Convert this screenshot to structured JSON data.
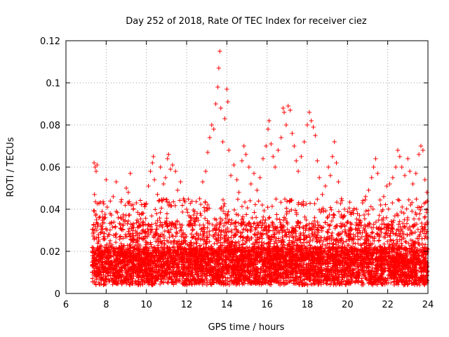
{
  "chart_data": {
    "type": "scatter",
    "title": "Day 252 of 2018, Rate Of TEC Index for receiver ciez",
    "xlabel": "GPS time / hours",
    "ylabel": "ROTI / TECUs",
    "xlim": [
      6,
      24
    ],
    "ylim": [
      0,
      0.12
    ],
    "xticks": [
      6,
      8,
      10,
      12,
      14,
      16,
      18,
      20,
      22,
      24
    ],
    "yticks": [
      0,
      0.02,
      0.04,
      0.06,
      0.08,
      0.1,
      0.12
    ],
    "xtick_labels": [
      "6",
      "8",
      "10",
      "12",
      "14",
      "16",
      "18",
      "20",
      "22",
      "24"
    ],
    "ytick_labels": [
      "0",
      "0.02",
      "0.04",
      "0.06",
      "0.08",
      "0.1",
      "0.12"
    ],
    "grid": true,
    "marker": "+",
    "color": "#ff0000",
    "series": [
      {
        "name": "ROTI",
        "points": [
          [
            7.4,
            0.062
          ],
          [
            7.45,
            0.06
          ],
          [
            7.5,
            0.058
          ],
          [
            7.55,
            0.061
          ],
          [
            7.42,
            0.047
          ],
          [
            7.48,
            0.037
          ],
          [
            7.52,
            0.035
          ],
          [
            7.6,
            0.033
          ],
          [
            8.0,
            0.054
          ],
          [
            8.05,
            0.041
          ],
          [
            8.2,
            0.038
          ],
          [
            8.35,
            0.046
          ],
          [
            8.5,
            0.053
          ],
          [
            8.6,
            0.036
          ],
          [
            8.7,
            0.031
          ],
          [
            8.85,
            0.035
          ],
          [
            9.0,
            0.05
          ],
          [
            9.1,
            0.048
          ],
          [
            9.2,
            0.057
          ],
          [
            9.35,
            0.04
          ],
          [
            9.5,
            0.043
          ],
          [
            9.6,
            0.034
          ],
          [
            9.8,
            0.038
          ],
          [
            9.95,
            0.029
          ],
          [
            10.1,
            0.051
          ],
          [
            10.2,
            0.058
          ],
          [
            10.3,
            0.062
          ],
          [
            10.35,
            0.065
          ],
          [
            10.4,
            0.054
          ],
          [
            10.55,
            0.047
          ],
          [
            10.7,
            0.06
          ],
          [
            10.85,
            0.052
          ],
          [
            10.95,
            0.055
          ],
          [
            11.05,
            0.064
          ],
          [
            11.1,
            0.066
          ],
          [
            11.2,
            0.059
          ],
          [
            11.3,
            0.061
          ],
          [
            11.45,
            0.058
          ],
          [
            11.55,
            0.049
          ],
          [
            11.7,
            0.053
          ],
          [
            11.85,
            0.045
          ],
          [
            12.0,
            0.04
          ],
          [
            12.15,
            0.033
          ],
          [
            12.3,
            0.03
          ],
          [
            12.5,
            0.036
          ],
          [
            12.65,
            0.045
          ],
          [
            12.8,
            0.053
          ],
          [
            12.95,
            0.058
          ],
          [
            13.05,
            0.067
          ],
          [
            13.15,
            0.074
          ],
          [
            13.25,
            0.08
          ],
          [
            13.35,
            0.078
          ],
          [
            13.45,
            0.09
          ],
          [
            13.55,
            0.098
          ],
          [
            13.6,
            0.107
          ],
          [
            13.65,
            0.115
          ],
          [
            13.7,
            0.088
          ],
          [
            13.8,
            0.072
          ],
          [
            13.9,
            0.083
          ],
          [
            14.0,
            0.097
          ],
          [
            14.05,
            0.091
          ],
          [
            14.1,
            0.068
          ],
          [
            14.2,
            0.056
          ],
          [
            14.35,
            0.061
          ],
          [
            14.5,
            0.054
          ],
          [
            14.6,
            0.048
          ],
          [
            14.75,
            0.063
          ],
          [
            14.85,
            0.07
          ],
          [
            14.95,
            0.066
          ],
          [
            15.1,
            0.06
          ],
          [
            15.2,
            0.052
          ],
          [
            15.35,
            0.057
          ],
          [
            15.5,
            0.049
          ],
          [
            15.65,
            0.055
          ],
          [
            15.8,
            0.064
          ],
          [
            15.95,
            0.07
          ],
          [
            16.05,
            0.078
          ],
          [
            16.1,
            0.082
          ],
          [
            16.2,
            0.071
          ],
          [
            16.3,
            0.065
          ],
          [
            16.4,
            0.06
          ],
          [
            16.55,
            0.068
          ],
          [
            16.7,
            0.074
          ],
          [
            16.8,
            0.088
          ],
          [
            16.85,
            0.086
          ],
          [
            16.95,
            0.08
          ],
          [
            17.05,
            0.089
          ],
          [
            17.15,
            0.087
          ],
          [
            17.25,
            0.076
          ],
          [
            17.35,
            0.07
          ],
          [
            17.45,
            0.063
          ],
          [
            17.55,
            0.058
          ],
          [
            17.7,
            0.065
          ],
          [
            17.85,
            0.072
          ],
          [
            18.0,
            0.08
          ],
          [
            18.1,
            0.086
          ],
          [
            18.2,
            0.082
          ],
          [
            18.3,
            0.079
          ],
          [
            18.4,
            0.075
          ],
          [
            18.5,
            0.063
          ],
          [
            18.6,
            0.055
          ],
          [
            18.75,
            0.047
          ],
          [
            18.9,
            0.051
          ],
          [
            19.05,
            0.06
          ],
          [
            19.15,
            0.056
          ],
          [
            19.25,
            0.065
          ],
          [
            19.35,
            0.072
          ],
          [
            19.45,
            0.062
          ],
          [
            19.55,
            0.053
          ],
          [
            19.7,
            0.045
          ],
          [
            19.85,
            0.04
          ],
          [
            20.0,
            0.034
          ],
          [
            20.15,
            0.031
          ],
          [
            20.3,
            0.038
          ],
          [
            20.45,
            0.04
          ],
          [
            20.6,
            0.037
          ],
          [
            20.75,
            0.043
          ],
          [
            20.9,
            0.046
          ],
          [
            21.05,
            0.049
          ],
          [
            21.2,
            0.055
          ],
          [
            21.3,
            0.06
          ],
          [
            21.4,
            0.064
          ],
          [
            21.5,
            0.057
          ],
          [
            21.65,
            0.042
          ],
          [
            21.8,
            0.046
          ],
          [
            21.95,
            0.051
          ],
          [
            22.1,
            0.052
          ],
          [
            22.25,
            0.055
          ],
          [
            22.4,
            0.06
          ],
          [
            22.5,
            0.068
          ],
          [
            22.6,
            0.065
          ],
          [
            22.7,
            0.06
          ],
          [
            22.85,
            0.056
          ],
          [
            23.0,
            0.064
          ],
          [
            23.1,
            0.058
          ],
          [
            23.25,
            0.052
          ],
          [
            23.4,
            0.057
          ],
          [
            23.55,
            0.066
          ],
          [
            23.65,
            0.07
          ],
          [
            23.75,
            0.068
          ],
          [
            23.85,
            0.054
          ],
          [
            23.95,
            0.048
          ]
        ]
      }
    ]
  }
}
